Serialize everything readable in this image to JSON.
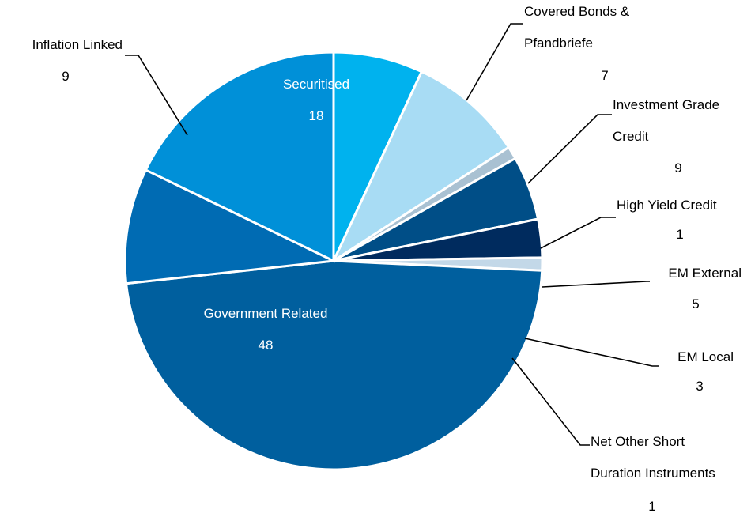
{
  "chart_data": {
    "type": "pie",
    "title": "",
    "start_angle_deg": -90,
    "direction": "clockwise",
    "label_color_inside": "#ffffff",
    "label_color_outside": "#000000",
    "leader_color": "#000000",
    "separator_color": "#ffffff",
    "slices": [
      {
        "name": "Covered Bonds & Pfandbriefe",
        "name_lines": [
          "Covered Bonds &",
          "Pfandbriefe"
        ],
        "value": 7,
        "value_label": "7",
        "color": "#00b2ee",
        "label": "outside"
      },
      {
        "name": "Investment Grade Credit",
        "name_lines": [
          "Investment Grade",
          "Credit"
        ],
        "value": 9,
        "value_label": "9",
        "color": "#a8dcf4",
        "label": "outside"
      },
      {
        "name": "High Yield Credit",
        "name_lines": [
          "High Yield Credit"
        ],
        "value": 1,
        "value_label": "1",
        "color": "#a9c1d2",
        "label": "outside"
      },
      {
        "name": "EM External",
        "name_lines": [
          "EM External"
        ],
        "value": 5,
        "value_label": "5",
        "color": "#004e87",
        "label": "outside"
      },
      {
        "name": "EM Local",
        "name_lines": [
          "EM Local"
        ],
        "value": 3,
        "value_label": "3",
        "color": "#002b5e",
        "label": "outside"
      },
      {
        "name": "Net Other Short Duration Instruments",
        "name_lines": [
          "Net Other Short",
          "Duration Instruments"
        ],
        "value": 1,
        "value_label": "1",
        "color": "#c3d8e8",
        "label": "outside"
      },
      {
        "name": "Government Related",
        "name_lines": [
          "Government Related"
        ],
        "value": 48,
        "value_label": "48",
        "color": "#005f9e",
        "label": "inside"
      },
      {
        "name": "Inflation Linked",
        "name_lines": [
          "Inflation Linked"
        ],
        "value": 9,
        "value_label": "9",
        "color": "#006bb3",
        "label": "outside"
      },
      {
        "name": "Securitised",
        "name_lines": [
          "Securitised"
        ],
        "value": 18,
        "value_label": "18",
        "color": "#0090d8",
        "label": "inside"
      }
    ]
  }
}
